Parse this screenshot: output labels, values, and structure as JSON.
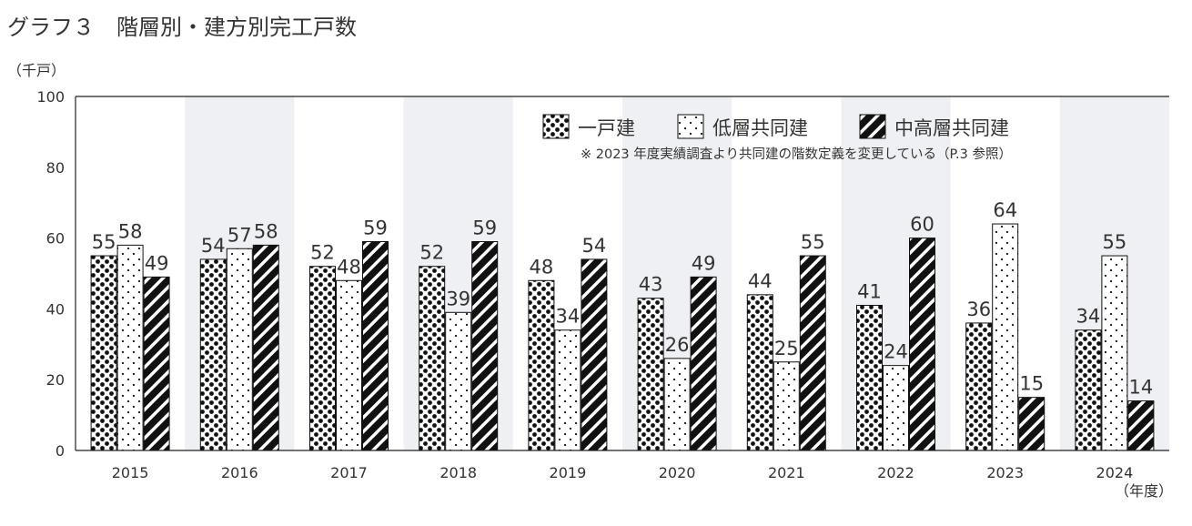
{
  "chart_data": {
    "type": "bar",
    "title": "グラフ３　階層別・建方別完工戸数",
    "ylabel": "（千戸）",
    "xlabel": "（年度）",
    "ylim": [
      0,
      100
    ],
    "yticks": [
      0,
      20,
      40,
      60,
      80,
      100
    ],
    "grid": false,
    "legend_position": "top-right",
    "note": "※ 2023 年度実績調査より共同建の階数定義を変更している（P.3 参照）",
    "categories": [
      "2015",
      "2016",
      "2017",
      "2018",
      "2019",
      "2020",
      "2021",
      "2022",
      "2023",
      "2024"
    ],
    "series": [
      {
        "name": "一戸建",
        "pattern": "dense-dots",
        "values": [
          55,
          54,
          52,
          52,
          48,
          43,
          44,
          41,
          36,
          34
        ]
      },
      {
        "name": "低層共同建",
        "pattern": "sparse-dots",
        "values": [
          58,
          57,
          48,
          39,
          34,
          26,
          25,
          24,
          64,
          55
        ]
      },
      {
        "name": "中高層共同建",
        "pattern": "diagonal-stripes",
        "values": [
          49,
          58,
          59,
          59,
          54,
          49,
          55,
          60,
          15,
          14
        ]
      }
    ],
    "colors": {
      "band": "#eef0f3",
      "ink": "#111111"
    }
  }
}
